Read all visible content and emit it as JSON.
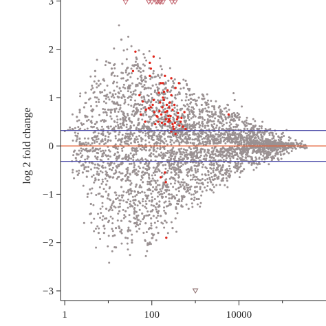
{
  "chart_data": {
    "type": "scatter",
    "title": "",
    "xlabel": "",
    "ylabel": "log 2 fold change",
    "x_scale": "log10",
    "xlim": [
      0.8,
      1000000
    ],
    "ylim": [
      -3.2,
      3.02
    ],
    "x_ticks": [
      {
        "value": 1,
        "label": "1"
      },
      {
        "value": 100,
        "label": "100"
      },
      {
        "value": 10000,
        "label": "10000"
      }
    ],
    "y_ticks": [
      {
        "value": 3,
        "label": "3"
      },
      {
        "value": 2,
        "label": "2"
      },
      {
        "value": 1,
        "label": "1"
      },
      {
        "value": 0,
        "label": "0"
      },
      {
        "value": -1,
        "label": "−1"
      },
      {
        "value": -2,
        "label": "−2"
      },
      {
        "value": -3,
        "label": "−3"
      }
    ],
    "colors": {
      "not_significant": "#9a9192",
      "significant": "#e0251b",
      "zero_line": "#e4633a",
      "threshold_lines": "#4a4aa8",
      "axis": "#222222"
    },
    "zero_line": 0,
    "threshold_lines": [
      0.32,
      -0.32
    ],
    "grid": false,
    "series": [
      {
        "group": "not_significant",
        "marker": "dot",
        "cloud_estimate": true,
        "x": [
          1.5,
          1.8,
          2.2,
          2.6,
          3.0,
          3.5,
          4.2,
          5,
          6,
          7,
          8,
          10,
          12,
          14,
          17,
          20,
          24,
          28,
          33,
          40,
          48,
          55,
          65,
          80,
          95,
          110,
          130,
          160,
          190,
          230,
          280,
          330,
          400,
          480,
          570,
          680,
          820,
          1000,
          1200,
          1450,
          1750,
          2100,
          2500,
          3000,
          3600,
          4300,
          5200,
          6200,
          7500,
          9000,
          11000,
          13000,
          16000,
          19000,
          23000,
          28000,
          34000,
          41000,
          50000,
          60000,
          73000,
          88000,
          105000,
          128000,
          155000,
          190000,
          230000,
          280000,
          2.0,
          2.8,
          3.8,
          5.5,
          7.5,
          11,
          15,
          22,
          30,
          42,
          60,
          85,
          120,
          170,
          240,
          340,
          480,
          700,
          1000,
          1400,
          2000,
          2900,
          4100,
          5800,
          8300,
          12000,
          17000,
          24000,
          34000,
          48000,
          68000,
          97000,
          140000,
          200000,
          3,
          4,
          6,
          9,
          13,
          18,
          26,
          36,
          52,
          75,
          105,
          150,
          210,
          300,
          430,
          620,
          890,
          1300,
          1800,
          2600,
          3700,
          5300,
          7600,
          11000,
          15000,
          22000,
          31000,
          44000,
          63000,
          90000,
          4,
          6,
          9,
          14,
          20,
          30,
          45,
          70,
          100,
          150,
          220,
          330,
          500,
          750,
          1100,
          1700,
          2500,
          3800,
          5700,
          8600,
          13000,
          19000,
          29000,
          43000,
          64000,
          96000,
          5,
          8,
          12,
          18,
          28,
          42,
          64,
          96,
          140,
          210,
          320,
          480,
          720,
          1080,
          1600,
          2400,
          3600,
          5400,
          8100,
          12000,
          18000,
          27000,
          40000,
          60000,
          6,
          9,
          14,
          21,
          32,
          48,
          72,
          108,
          160,
          240,
          360,
          540,
          810,
          1200,
          1800,
          2700,
          4000,
          6100,
          9100,
          13600,
          20000,
          30000,
          45000,
          2.5,
          3.5,
          5,
          7,
          10,
          15,
          21,
          30,
          44,
          64,
          93,
          135,
          195,
          285,
          415,
          600,
          870,
          1260,
          1830,
          2650,
          3850,
          5600,
          8100,
          11700,
          17000,
          24700,
          35800,
          52000,
          75000,
          110000,
          3.2,
          4.7,
          6.9,
          10,
          14.6,
          21,
          31,
          45,
          66,
          96,
          140,
          204,
          297,
          432,
          630,
          917,
          1335,
          1943,
          2830,
          4120,
          6000,
          8730,
          12700,
          18500,
          27000,
          39200,
          57000,
          1.9,
          2.7,
          4,
          6,
          8.7,
          13,
          19,
          28,
          41,
          60,
          88,
          128,
          188,
          275,
          400,
          585,
          855,
          1250,
          1825,
          2670,
          3900,
          5700,
          8330,
          12200,
          17800,
          26000,
          38000,
          55500,
          81000,
          118000,
          172000,
          14,
          26,
          47,
          85,
          155,
          280,
          510,
          930,
          1690,
          3070,
          5590,
          10200,
          18500,
          33600,
          61000,
          10,
          18,
          33,
          60,
          110,
          200,
          360,
          660,
          1200,
          2180,
          3960,
          7200,
          13100,
          23800,
          43300,
          78800,
          22,
          40,
          73,
          133,
          242,
          440,
          800,
          1450,
          2640,
          4800,
          8730,
          15900,
          28900,
          52500,
          16,
          30,
          55,
          100,
          182,
          330,
          600,
          1090,
          1980,
          3600,
          6550,
          11900,
          21700,
          39400,
          71600,
          12,
          20,
          35,
          62,
          110,
          195,
          345,
          610,
          1080,
          1910,
          3380,
          5980,
          10600,
          18700,
          33100,
          58500,
          9,
          16,
          29,
          52,
          95,
          172,
          312,
          566,
          1027,
          1862,
          3377,
          6124,
          11107,
          20143,
          36531,
          66252,
          40,
          200,
          25,
          140,
          8000,
          60,
          350,
          12,
          90,
          300,
          700,
          150,
          1200,
          45,
          500,
          2200,
          80,
          35,
          160,
          600,
          2000,
          7000,
          250,
          1000,
          100,
          4000,
          30,
          75,
          120,
          180,
          280,
          450,
          900,
          1500,
          3000,
          5000,
          9000,
          20000,
          65,
          15,
          22,
          50,
          110,
          210,
          400,
          1800,
          60,
          180,
          700,
          15,
          35,
          90,
          20,
          55,
          130,
          380,
          8,
          25,
          70,
          200,
          550
        ],
        "y": [
          0.35,
          -0.25,
          0.15,
          -0.55,
          0.6,
          0.05,
          -0.35,
          0.45,
          -0.7,
          0.25,
          -0.15,
          0.75,
          -0.5,
          0.3,
          0.85,
          -0.85,
          0.55,
          -0.3,
          0.95,
          0.1,
          -0.95,
          0.65,
          -0.6,
          0.4,
          0.9,
          -0.45,
          0.2,
          -0.2,
          0.7,
          0.5,
          -0.55,
          0.3,
          -0.35,
          0.45,
          0.6,
          -0.25,
          0.35,
          0.25,
          -0.4,
          0.5,
          -0.3,
          0.3,
          0.4,
          -0.2,
          0.2,
          0.35,
          -0.25,
          0.15,
          0.25,
          -0.15,
          0.2,
          0.1,
          -0.1,
          0.15,
          0.05,
          -0.12,
          0.1,
          0.08,
          -0.05,
          0.06,
          0.03,
          -0.04,
          0.02,
          0.05,
          -0.03,
          0.01,
          0.03,
          -0.02,
          -0.6,
          0.8,
          -0.9,
          1.0,
          -1.05,
          1.1,
          -1.1,
          1.05,
          -1.0,
          1.15,
          -0.95,
          1.2,
          -0.9,
          1.1,
          -0.85,
          1.0,
          -0.75,
          0.95,
          -0.7,
          0.85,
          -0.6,
          0.7,
          -0.5,
          0.6,
          -0.45,
          0.5,
          -0.35,
          0.42,
          -0.28,
          0.33,
          -0.2,
          0.25,
          -0.15,
          0.12,
          1.1,
          -1.2,
          1.25,
          -1.3,
          1.3,
          -1.35,
          1.35,
          -1.25,
          1.3,
          -1.2,
          1.25,
          -1.15,
          1.2,
          -1.05,
          1.1,
          -0.95,
          0.95,
          -0.85,
          0.85,
          -0.7,
          0.7,
          -0.55,
          0.55,
          -0.42,
          0.42,
          -0.32,
          0.3,
          -0.22,
          0.2,
          -0.12,
          -1.4,
          1.35,
          -1.5,
          1.45,
          -1.55,
          1.5,
          -1.45,
          1.4,
          -1.35,
          1.3,
          -1.25,
          1.2,
          -1.1,
          1.05,
          -0.95,
          0.9,
          -0.8,
          0.75,
          -0.62,
          0.6,
          -0.48,
          0.45,
          -0.35,
          0.32,
          -0.25,
          0.18,
          1.55,
          -1.65,
          1.6,
          -1.7,
          1.62,
          -1.6,
          1.55,
          -1.5,
          1.45,
          -1.4,
          1.3,
          -1.25,
          1.15,
          -1.1,
          0.98,
          -0.92,
          0.82,
          -0.72,
          0.62,
          -0.52,
          0.45,
          -0.38,
          0.3,
          -0.22,
          -1.8,
          1.75,
          -1.85,
          1.7,
          -1.75,
          1.65,
          -1.6,
          1.5,
          -1.45,
          1.35,
          -1.3,
          1.2,
          -1.1,
          1.0,
          -0.92,
          0.82,
          -0.72,
          0.62,
          -0.52,
          0.44,
          -0.36,
          0.28,
          -0.2,
          0.05,
          -0.1,
          0.2,
          -0.3,
          0.4,
          -0.05,
          0.15,
          -0.25,
          0.35,
          -0.45,
          0.55,
          -0.05,
          0.25,
          -0.15,
          0.45,
          -0.35,
          0.05,
          0.3,
          -0.2,
          0.12,
          -0.08,
          0.22,
          -0.12,
          0.18,
          -0.06,
          0.1,
          -0.05,
          0.08,
          -0.03,
          0.04,
          -0.1,
          -0.1,
          0.1,
          -0.2,
          0.3,
          -0.35,
          0.2,
          -0.05,
          0.4,
          -0.3,
          0.15,
          -0.2,
          0.35,
          -0.1,
          0.25,
          -0.15,
          0.2,
          -0.08,
          0.14,
          -0.12,
          0.1,
          -0.06,
          0.12,
          -0.04,
          0.07,
          -0.05,
          0.03,
          0.6,
          -0.4,
          0.5,
          -0.6,
          0.7,
          -0.65,
          0.55,
          -0.5,
          0.65,
          -0.55,
          0.6,
          -0.45,
          0.5,
          -0.4,
          0.45,
          -0.35,
          0.4,
          -0.3,
          0.32,
          -0.25,
          0.26,
          -0.2,
          0.2,
          -0.15,
          0.15,
          -0.1,
          0.1,
          -0.07,
          0.06,
          -0.04,
          0.03,
          0.0,
          0.1,
          -0.1,
          0.2,
          0.05,
          -0.15,
          0.12,
          -0.05,
          0.08,
          0.15,
          -0.08,
          0.05,
          -0.03,
          0.04,
          0.02,
          0.12,
          -0.2,
          0.25,
          0.0,
          -0.1,
          0.3,
          0.1,
          -0.25,
          0.2,
          0.05,
          -0.12,
          0.14,
          -0.06,
          0.05,
          0.02,
          -0.02,
          0.45,
          -0.5,
          0.4,
          0.2,
          -0.3,
          0.35,
          -0.15,
          0.25,
          0.1,
          -0.2,
          0.15,
          -0.1,
          0.08,
          0.03,
          -0.45,
          0.55,
          -0.35,
          0.3,
          -0.4,
          0.28,
          0.18,
          -0.22,
          0.22,
          -0.12,
          0.16,
          -0.06,
          0.1,
          -0.03,
          0.02,
          0.75,
          -0.7,
          0.65,
          -0.75,
          0.7,
          0.55,
          -0.6,
          0.52,
          -0.42,
          0.42,
          -0.32,
          0.3,
          -0.25,
          0.2,
          -0.12,
          0.08,
          -0.8,
          0.9,
          -0.95,
          0.85,
          -0.8,
          0.7,
          -0.68,
          0.6,
          -0.55,
          0.48,
          -0.4,
          0.32,
          -0.26,
          0.18,
          -0.12,
          0.06,
          -1.6,
          -1.55,
          -1.9,
          -1.8,
          0.95,
          -1.4,
          -1.5,
          1.5,
          -2.0,
          -1.7,
          -1.3,
          -1.25,
          -1.1,
          1.8,
          -1.05,
          -0.9,
          -2.05,
          -1.95,
          1.65,
          1.35,
          0.8,
          0.6,
          -1.0,
          -0.85,
          -1.15,
          -0.45,
          1.25,
          0.9,
          -0.9,
          0.95,
          -0.65,
          0.75,
          -0.6,
          1.05,
          -0.5,
          0.55,
          0.4,
          0.3,
          1.9,
          -1.7,
          1.4,
          1.55,
          -1.45,
          1.3,
          -1.2,
          0.85,
          0.85,
          -0.85,
          0.75,
          -2.1,
          -2.0,
          -1.7,
          2.2,
          1.6,
          -1.2,
          0.5,
          -1.8,
          -1.35,
          1.2,
          1.0,
          0.6
        ]
      },
      {
        "group": "significant",
        "marker": "dot",
        "x": [
          42,
          37,
          52,
          56,
          73,
          95,
          110,
          135,
          155,
          180,
          200,
          205,
          220,
          245,
          160,
          120,
          145,
          165,
          230,
          260,
          300,
          330,
          390,
          460,
          520,
          600,
          380,
          430,
          280,
          250,
          210,
          190,
          170,
          150,
          130,
          105,
          85,
          70,
          62,
          400,
          480,
          340,
          310,
          270,
          240,
          225,
          175,
          140,
          115,
          95,
          90,
          350,
          420,
          560,
          280,
          190,
          240,
          320,
          200,
          260,
          300,
          90,
          180,
          280,
          350,
          110,
          210,
          5800,
          200,
          215,
          160
        ],
        "y": [
          1.95,
          1.55,
          1.05,
          0.65,
          0.75,
          0.8,
          0.95,
          0.6,
          0.9,
          1.0,
          1.45,
          0.7,
          0.85,
          0.55,
          1.3,
          0.45,
          1.1,
          0.65,
          1.15,
          0.9,
          0.75,
          0.85,
          0.6,
          0.5,
          0.4,
          0.35,
          0.55,
          0.42,
          1.05,
          0.8,
          0.55,
          0.95,
          0.48,
          0.72,
          0.62,
          0.85,
          0.78,
          0.5,
          0.92,
          0.68,
          0.58,
          0.48,
          0.4,
          0.62,
          0.5,
          0.72,
          0.8,
          0.5,
          0.7,
          1.6,
          1.72,
          1.2,
          1.3,
          0.7,
          1.4,
          1.12,
          0.62,
          0.35,
          0.45,
          0.52,
          0.45,
          1.45,
          1.3,
          0.3,
          0.25,
          1.85,
          -0.75,
          0.65,
          -0.55,
          -1.9,
          -0.65
        ]
      },
      {
        "group": "beyond_range",
        "marker": "triangle-down",
        "x": [
          25,
          85,
          100,
          125,
          135,
          150,
          160,
          180,
          290,
          340,
          1000
        ],
        "y": [
          3.02,
          3.02,
          3.02,
          3.02,
          3.02,
          3.02,
          3.02,
          3.02,
          3.02,
          3.02,
          -3.02
        ]
      }
    ]
  }
}
